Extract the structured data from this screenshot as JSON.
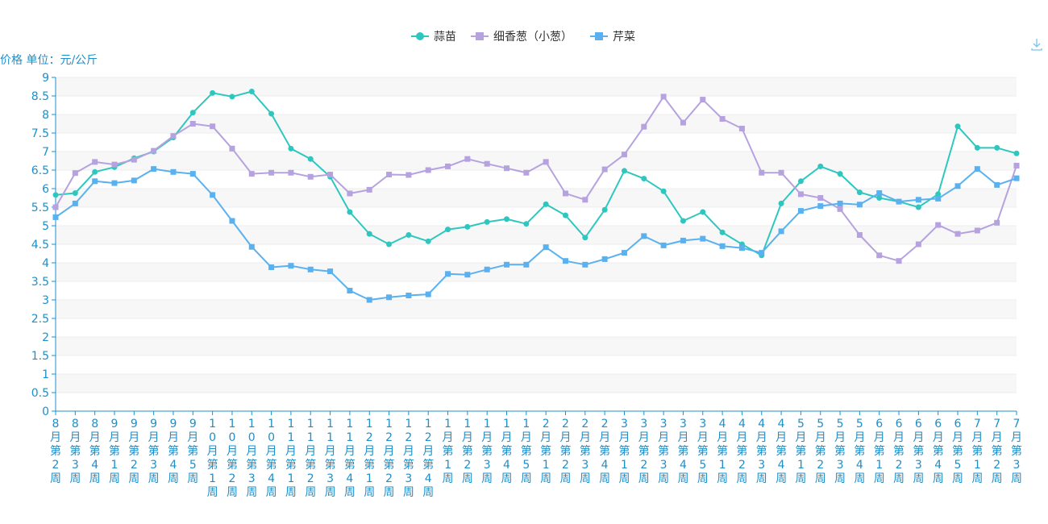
{
  "toolbar": {
    "download_icon": "download-icon"
  },
  "chart_data": {
    "type": "line",
    "unit_label": "价格 单位：元/公斤",
    "ylim": [
      0,
      9
    ],
    "yticks": [
      "0",
      "0.5",
      "1",
      "1.5",
      "2",
      "2.5",
      "3",
      "3.5",
      "4",
      "4.5",
      "5",
      "5.5",
      "6",
      "6.5",
      "7",
      "7.5",
      "8",
      "8.5",
      "9"
    ],
    "grid": true,
    "legend_position": "top-center",
    "categories": [
      "8月第2周",
      "8月第3周",
      "8月第4周",
      "9月第1周",
      "9月第2周",
      "9月第3周",
      "9月第4周",
      "9月第5周",
      "10月第1周",
      "10月第2周",
      "10月第3周",
      "10月第4周",
      "11月第1周",
      "11月第2周",
      "11月第3周",
      "11月第4周",
      "12月第1周",
      "12月第2周",
      "12月第3周",
      "12月第4周",
      "1月第1周",
      "1月第2周",
      "1月第3周",
      "1月第4周",
      "1月第5周",
      "2月第1周",
      "2月第2周",
      "2月第3周",
      "2月第4周",
      "3月第1周",
      "3月第2周",
      "3月第3周",
      "3月第4周",
      "3月第5周",
      "4月第1周",
      "4月第2周",
      "4月第3周",
      "4月第4周",
      "5月第1周",
      "5月第2周",
      "5月第3周",
      "5月第4周",
      "6月第1周",
      "6月第2周",
      "6月第3周",
      "6月第4周",
      "6月第5周",
      "7月第1周",
      "7月第2周",
      "7月第3周"
    ],
    "series": [
      {
        "name": "蒜苗",
        "color": "#2ec7c0",
        "symbol": "circle",
        "values": [
          5.83,
          5.88,
          6.45,
          6.58,
          6.82,
          7.0,
          7.38,
          8.05,
          8.58,
          8.48,
          8.62,
          8.02,
          7.08,
          6.8,
          6.32,
          5.37,
          4.78,
          4.5,
          4.75,
          4.58,
          4.9,
          4.97,
          5.1,
          5.18,
          5.05,
          5.58,
          5.28,
          4.68,
          5.43,
          6.48,
          6.27,
          5.93,
          5.13,
          5.37,
          4.82,
          4.5,
          4.2,
          5.6,
          6.2,
          6.6,
          6.4,
          5.9,
          5.75,
          5.65,
          5.5,
          5.85,
          7.68,
          7.1,
          7.1,
          6.95
        ]
      },
      {
        "name": "细香葱（小葱）",
        "color": "#b6a2de",
        "symbol": "square",
        "values": [
          5.5,
          6.42,
          6.72,
          6.65,
          6.78,
          7.02,
          7.42,
          7.75,
          7.68,
          7.08,
          6.4,
          6.43,
          6.43,
          6.32,
          6.38,
          5.87,
          5.97,
          6.38,
          6.37,
          6.5,
          6.6,
          6.8,
          6.67,
          6.55,
          6.43,
          6.72,
          5.87,
          5.7,
          6.52,
          6.92,
          7.67,
          8.48,
          7.78,
          8.4,
          7.88,
          7.62,
          6.43,
          6.43,
          5.85,
          5.75,
          5.45,
          4.75,
          4.2,
          4.05,
          4.5,
          5.02,
          4.78,
          4.87,
          5.08,
          6.62
        ]
      },
      {
        "name": "芹菜",
        "color": "#5ab1ef",
        "symbol": "square",
        "values": [
          5.23,
          5.6,
          6.2,
          6.15,
          6.22,
          6.53,
          6.45,
          6.4,
          5.83,
          5.13,
          4.43,
          3.88,
          3.92,
          3.82,
          3.77,
          3.25,
          3.0,
          3.07,
          3.12,
          3.15,
          3.7,
          3.68,
          3.82,
          3.95,
          3.95,
          4.42,
          4.05,
          3.95,
          4.1,
          4.27,
          4.72,
          4.47,
          4.6,
          4.65,
          4.45,
          4.4,
          4.27,
          4.85,
          5.4,
          5.53,
          5.6,
          5.57,
          5.88,
          5.65,
          5.7,
          5.73,
          6.07,
          6.53,
          6.1,
          6.28
        ]
      }
    ]
  }
}
